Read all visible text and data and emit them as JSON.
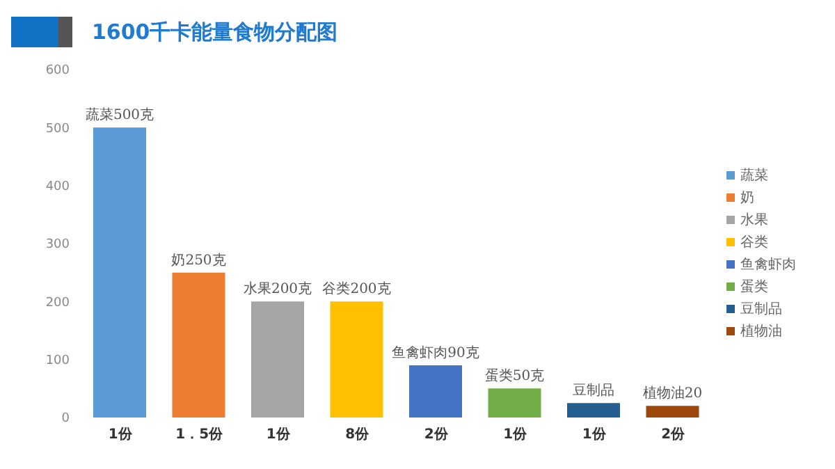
{
  "chart_data": {
    "type": "bar",
    "title": "1600千卡能量食物分配图",
    "categories": [
      "1份",
      "1．5份",
      "1份",
      "8份",
      "2份",
      "1份",
      "1份",
      "2份"
    ],
    "stacked": true,
    "legend": "right",
    "grid": false,
    "ylim": [
      0,
      600
    ],
    "yticks": [
      0,
      100,
      200,
      300,
      400,
      500,
      600
    ],
    "series": [
      {
        "name": "蔬菜",
        "color": "#5b9bd5",
        "values": [
          500,
          null,
          null,
          null,
          null,
          null,
          null,
          null
        ],
        "value_labels": [
          "蔬菜500克",
          null,
          null,
          null,
          null,
          null,
          null,
          null
        ]
      },
      {
        "name": "奶",
        "color": "#ed7d31",
        "values": [
          null,
          250,
          null,
          null,
          null,
          null,
          null,
          null
        ],
        "value_labels": [
          null,
          "奶250克",
          null,
          null,
          null,
          null,
          null,
          null
        ]
      },
      {
        "name": "水果",
        "color": "#a5a5a5",
        "values": [
          null,
          null,
          200,
          null,
          null,
          null,
          null,
          null
        ],
        "value_labels": [
          null,
          null,
          "水果200克",
          null,
          null,
          null,
          null,
          null
        ]
      },
      {
        "name": "谷类",
        "color": "#ffc000",
        "values": [
          null,
          null,
          null,
          200,
          null,
          null,
          null,
          null
        ],
        "value_labels": [
          null,
          null,
          null,
          "谷类200克",
          null,
          null,
          null,
          null
        ]
      },
      {
        "name": "鱼禽虾肉",
        "color": "#4472c4",
        "values": [
          null,
          null,
          null,
          null,
          90,
          null,
          null,
          null
        ],
        "value_labels": [
          null,
          null,
          null,
          null,
          "鱼禽虾肉90克",
          null,
          null,
          null
        ]
      },
      {
        "name": "蛋类",
        "color": "#70ad47",
        "values": [
          null,
          null,
          null,
          null,
          null,
          50,
          null,
          null
        ],
        "value_labels": [
          null,
          null,
          null,
          null,
          null,
          "蛋类50克",
          null,
          null
        ]
      },
      {
        "name": "豆制品",
        "color": "#255e91",
        "values": [
          null,
          null,
          null,
          null,
          null,
          null,
          25,
          null
        ],
        "value_labels": [
          null,
          null,
          null,
          null,
          null,
          null,
          "豆制品",
          null
        ]
      },
      {
        "name": "植物油",
        "color": "#9e480e",
        "values": [
          null,
          null,
          null,
          null,
          null,
          null,
          null,
          20
        ],
        "value_labels": [
          null,
          null,
          null,
          null,
          null,
          null,
          null,
          "植物油20"
        ]
      }
    ]
  }
}
